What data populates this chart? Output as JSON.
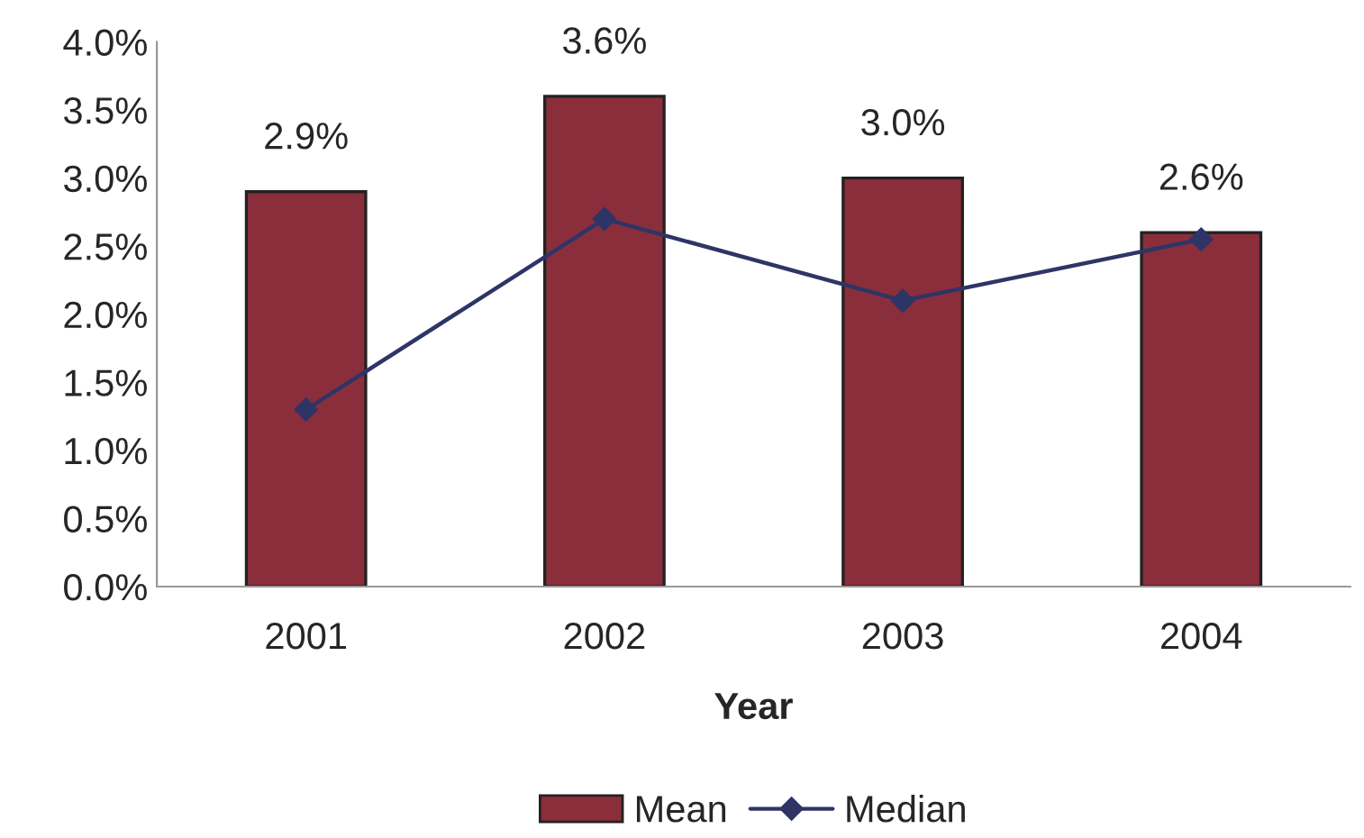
{
  "chart_data": {
    "type": "bar",
    "xlabel": "Year",
    "categories": [
      "2001",
      "2002",
      "2003",
      "2004"
    ],
    "series": [
      {
        "name": "Mean",
        "color": "#8b2e3c",
        "values": [
          2.9,
          3.6,
          3.0,
          2.6
        ],
        "value_labels": [
          "2.9%",
          "3.6%",
          "3.0%",
          "2.6%"
        ]
      },
      {
        "name": "Median",
        "type": "line",
        "color": "#2e3566",
        "values": [
          1.3,
          2.7,
          2.1,
          2.55
        ],
        "marker": "diamond",
        "line_style": "solid"
      }
    ],
    "ylim": [
      0,
      4
    ],
    "yticks": [
      {
        "value": 0,
        "label": "0.0%"
      },
      {
        "value": 0.5,
        "label": "0.5%"
      },
      {
        "value": 1,
        "label": "1.0%"
      },
      {
        "value": 1.5,
        "label": "1.5%"
      },
      {
        "value": 2,
        "label": "2.0%"
      },
      {
        "value": 2.5,
        "label": "2.5%"
      },
      {
        "value": 3,
        "label": "3.0%"
      },
      {
        "value": 3.5,
        "label": "3.5%"
      },
      {
        "value": 4,
        "label": "4.0%"
      }
    ],
    "grid": false,
    "legend": "bottom"
  }
}
